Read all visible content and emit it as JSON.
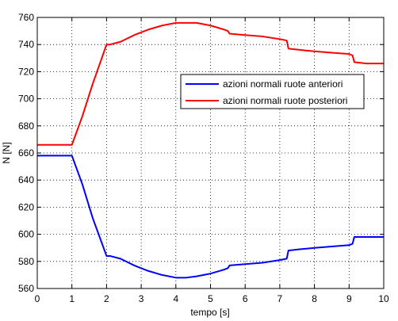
{
  "chart_data": {
    "type": "line",
    "title": "",
    "xlabel": "tempo [s]",
    "ylabel": "N [N]",
    "xlim": [
      0,
      10
    ],
    "ylim": [
      560,
      760
    ],
    "x_ticks": [
      0,
      1,
      2,
      3,
      4,
      5,
      6,
      7,
      8,
      9,
      10
    ],
    "y_ticks": [
      560,
      580,
      600,
      620,
      640,
      660,
      680,
      700,
      720,
      740,
      760
    ],
    "grid": true,
    "legend_position": "right",
    "series": [
      {
        "name": "azioni normali ruote anteriori",
        "color": "#0000ff",
        "x": [
          0,
          1.0,
          1.3,
          1.6,
          2.0,
          2.1,
          2.4,
          2.8,
          3.2,
          3.6,
          4.0,
          4.3,
          4.6,
          5.0,
          5.4,
          5.5,
          5.55,
          6.0,
          6.5,
          7.0,
          7.2,
          7.25,
          7.6,
          8.0,
          8.5,
          9.0,
          9.1,
          9.15,
          9.5,
          10.0
        ],
        "values": [
          658,
          658,
          637,
          612,
          584,
          584,
          582,
          577,
          573,
          570,
          568,
          568,
          569,
          571,
          574,
          575,
          577,
          578,
          579,
          581,
          582,
          588,
          589,
          590,
          591,
          592,
          593,
          598,
          598,
          598
        ]
      },
      {
        "name": "azioni normali ruote posteriori",
        "color": "#ff0000",
        "x": [
          0,
          1.0,
          1.3,
          1.6,
          2.0,
          2.1,
          2.4,
          2.8,
          3.2,
          3.6,
          4.0,
          4.3,
          4.6,
          5.0,
          5.4,
          5.5,
          5.55,
          6.0,
          6.5,
          7.0,
          7.2,
          7.25,
          7.6,
          8.0,
          8.5,
          9.0,
          9.1,
          9.15,
          9.5,
          10.0
        ],
        "values": [
          666,
          666,
          687,
          711,
          740,
          740,
          742,
          747,
          751,
          754,
          756,
          756,
          756,
          754,
          751,
          750,
          748,
          747,
          746,
          744,
          743,
          737,
          736,
          735,
          734,
          733,
          732,
          727,
          726,
          726
        ]
      }
    ]
  }
}
